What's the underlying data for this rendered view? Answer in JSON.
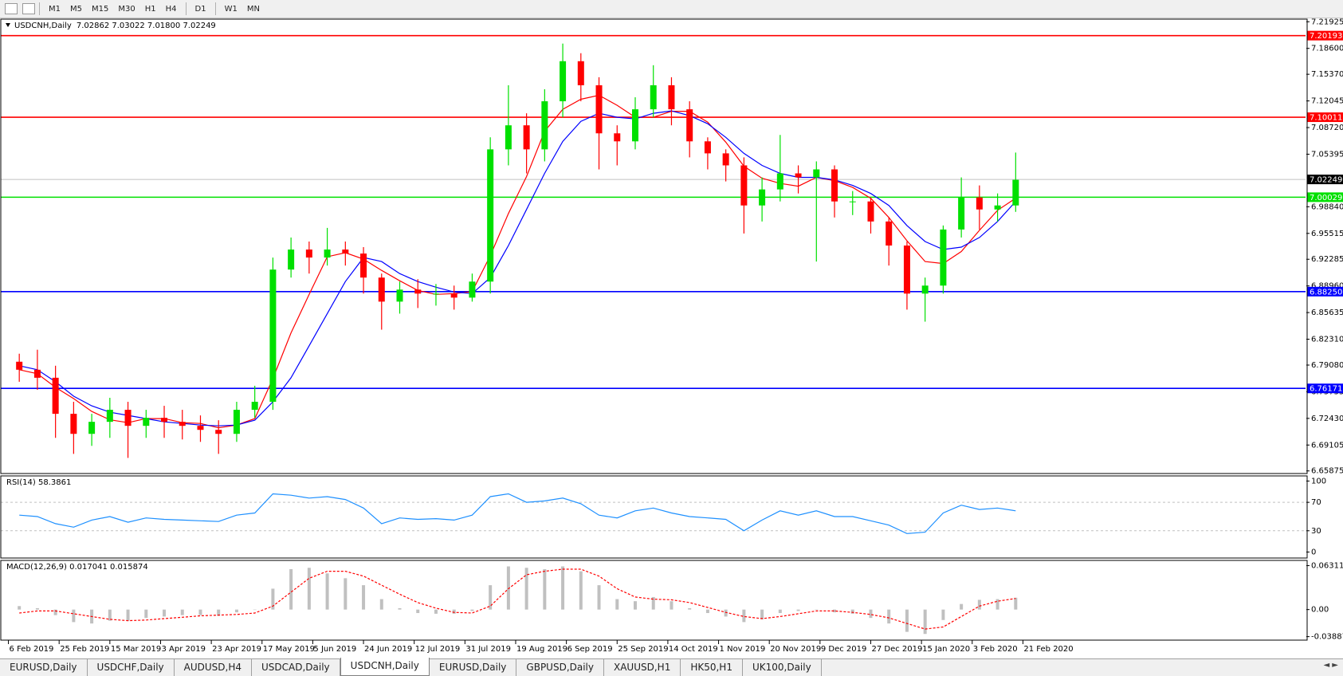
{
  "toolbar": {
    "timeframes": [
      "M1",
      "M5",
      "M15",
      "M30",
      "H1",
      "H4",
      "D1",
      "W1",
      "MN"
    ]
  },
  "tabs": {
    "items": [
      "EURUSD,Daily",
      "USDCHF,Daily",
      "AUDUSD,H4",
      "USDCAD,Daily",
      "USDCNH,Daily",
      "EURUSD,Daily",
      "GBPUSD,Daily",
      "XAUUSD,H1",
      "HK50,H1",
      "UK100,Daily"
    ],
    "active": 4
  },
  "chart_data": [
    {
      "type": "candlestick",
      "title": "USDCNH,Daily",
      "info": "7.02862 7.03022 7.01800 7.02249",
      "up_color": "#00e000",
      "down_color": "#ff0000",
      "xlim": [
        -1,
        358
      ],
      "xticks": [
        {
          "value": 0,
          "label": "6 Feb 2019"
        },
        {
          "value": 14,
          "label": "25 Feb 2019"
        },
        {
          "value": 28,
          "label": "15 Mar 2019"
        },
        {
          "value": 42,
          "label": "3 Apr 2019"
        },
        {
          "value": 56,
          "label": "23 Apr 2019"
        },
        {
          "value": 70,
          "label": "17 May 2019"
        },
        {
          "value": 84,
          "label": "5 Jun 2019"
        },
        {
          "value": 98,
          "label": "24 Jun 2019"
        },
        {
          "value": 112,
          "label": "12 Jul 2019"
        },
        {
          "value": 126,
          "label": "31 Jul 2019"
        },
        {
          "value": 140,
          "label": "19 Aug 2019"
        },
        {
          "value": 154,
          "label": "6 Sep 2019"
        },
        {
          "value": 168,
          "label": "25 Sep 2019"
        },
        {
          "value": 182,
          "label": "14 Oct 2019"
        },
        {
          "value": 196,
          "label": "1 Nov 2019"
        },
        {
          "value": 210,
          "label": "20 Nov 2019"
        },
        {
          "value": 224,
          "label": "9 Dec 2019"
        },
        {
          "value": 238,
          "label": "27 Dec 2019"
        },
        {
          "value": 252,
          "label": "15 Jan 2020"
        },
        {
          "value": 266,
          "label": "3 Feb 2020"
        },
        {
          "value": 280,
          "label": "21 Feb 2020"
        }
      ],
      "ylim": [
        6.6555,
        7.2225
      ],
      "yticks": [
        {
          "value": 7.21925,
          "label": "7.21925"
        },
        {
          "value": 7.186,
          "label": "7.18600"
        },
        {
          "value": 7.1537,
          "label": "7.15370"
        },
        {
          "value": 7.12045,
          "label": "7.12045"
        },
        {
          "value": 7.0872,
          "label": "7.08720"
        },
        {
          "value": 7.05395,
          "label": "7.05395"
        },
        {
          "value": 6.9884,
          "label": "6.98840"
        },
        {
          "value": 6.95515,
          "label": "6.95515"
        },
        {
          "value": 6.92285,
          "label": "6.92285"
        },
        {
          "value": 6.8896,
          "label": "6.88960"
        },
        {
          "value": 6.85635,
          "label": "6.85635"
        },
        {
          "value": 6.8231,
          "label": "6.82310"
        },
        {
          "value": 6.7908,
          "label": "6.79080"
        },
        {
          "value": 6.75755,
          "label": "6.75755"
        },
        {
          "value": 6.7243,
          "label": "6.72430"
        },
        {
          "value": 6.69105,
          "label": "6.69105"
        },
        {
          "value": 6.65875,
          "label": "6.65875"
        }
      ],
      "levels": [
        {
          "value": 7.20193,
          "label": "7.20193",
          "color": "#ff0000"
        },
        {
          "value": 7.10011,
          "label": "7.10011",
          "color": "#ff0000"
        },
        {
          "value": 7.00029,
          "label": "7.00029",
          "color": "#00e000"
        },
        {
          "value": 6.8825,
          "label": "6.88250",
          "color": "#0000ff"
        },
        {
          "value": 6.76171,
          "label": "6.76171",
          "color": "#0000ff"
        }
      ],
      "last": {
        "value": 7.02249,
        "label": "7.02249",
        "color": "#c0c0c0"
      },
      "x": [
        3,
        8,
        13,
        18,
        23,
        28,
        33,
        38,
        43,
        48,
        53,
        58,
        63,
        68,
        73,
        78,
        83,
        88,
        93,
        98,
        103,
        108,
        113,
        118,
        123,
        128,
        133,
        138,
        143,
        148,
        153,
        158,
        163,
        168,
        173,
        178,
        183,
        188,
        193,
        198,
        203,
        208,
        213,
        218,
        223,
        228,
        233,
        238,
        243,
        248,
        253,
        258,
        263,
        268,
        273,
        278
      ],
      "open": [
        6.795,
        6.785,
        6.775,
        6.73,
        6.705,
        6.72,
        6.735,
        6.715,
        6.725,
        6.72,
        6.715,
        6.71,
        6.705,
        6.735,
        6.745,
        6.91,
        6.935,
        6.925,
        6.935,
        6.93,
        6.9,
        6.87,
        6.885,
        6.88,
        6.88,
        6.875,
        6.895,
        7.06,
        7.09,
        7.06,
        7.12,
        7.17,
        7.14,
        7.08,
        7.07,
        7.11,
        7.14,
        7.11,
        7.07,
        7.055,
        7.04,
        6.99,
        7.01,
        7.03,
        7.025,
        7.035,
        6.995,
        6.995,
        6.97,
        6.94,
        6.88,
        6.89,
        6.96,
        7.0,
        6.985,
        6.99
      ],
      "high": [
        6.805,
        6.81,
        6.79,
        6.745,
        6.73,
        6.75,
        6.745,
        6.735,
        6.74,
        6.735,
        6.728,
        6.722,
        6.745,
        6.765,
        6.925,
        6.95,
        6.945,
        6.962,
        6.945,
        6.938,
        6.905,
        6.895,
        6.898,
        6.892,
        6.89,
        6.905,
        7.075,
        7.14,
        7.105,
        7.135,
        7.192,
        7.18,
        7.15,
        7.09,
        7.125,
        7.165,
        7.15,
        7.12,
        7.075,
        7.06,
        7.05,
        7.025,
        7.078,
        7.04,
        7.045,
        7.04,
        7.008,
        7.0,
        6.975,
        6.945,
        6.9,
        6.965,
        7.025,
        7.015,
        7.005,
        7.056
      ],
      "low": [
        6.77,
        6.76,
        6.7,
        6.68,
        6.69,
        6.7,
        6.675,
        6.7,
        6.7,
        6.698,
        6.695,
        6.68,
        6.695,
        6.725,
        6.735,
        6.9,
        6.905,
        6.915,
        6.915,
        6.88,
        6.835,
        6.855,
        6.862,
        6.865,
        6.86,
        6.87,
        6.88,
        7.04,
        7.03,
        7.045,
        7.1,
        7.12,
        7.035,
        7.04,
        7.06,
        7.1,
        7.09,
        7.05,
        7.035,
        7.02,
        6.955,
        6.97,
        6.995,
        7.005,
        6.92,
        6.975,
        6.978,
        6.955,
        6.915,
        6.86,
        6.845,
        6.88,
        6.95,
        6.96,
        6.97,
        6.982
      ],
      "close": [
        6.785,
        6.775,
        6.73,
        6.705,
        6.72,
        6.735,
        6.715,
        6.725,
        6.72,
        6.715,
        6.71,
        6.705,
        6.735,
        6.745,
        6.91,
        6.935,
        6.925,
        6.935,
        6.93,
        6.9,
        6.87,
        6.885,
        6.88,
        6.88,
        6.875,
        6.895,
        7.06,
        7.09,
        7.06,
        7.12,
        7.17,
        7.14,
        7.08,
        7.07,
        7.11,
        7.14,
        7.11,
        7.07,
        7.055,
        7.04,
        6.99,
        7.01,
        7.03,
        7.025,
        7.035,
        6.995,
        6.995,
        6.97,
        6.94,
        6.88,
        6.89,
        6.96,
        7.0,
        6.985,
        6.99,
        7.022
      ],
      "overlays": [
        {
          "color": "#ff0000",
          "values": [
            6.785,
            6.78,
            6.763,
            6.749,
            6.733,
            6.7225,
            6.719,
            6.724,
            6.724,
            6.719,
            6.718,
            6.7125,
            6.716,
            6.724,
            6.774,
            6.831,
            6.879,
            6.926,
            6.931,
            6.923,
            6.909,
            6.896,
            6.884,
            6.879,
            6.88,
            6.8825,
            6.9275,
            6.98,
            7.026,
            7.0825,
            7.11,
            7.1225,
            7.1275,
            7.115,
            7.1,
            7.1,
            7.1075,
            7.1075,
            7.094,
            7.069,
            7.039,
            7.024,
            7.0175,
            7.014,
            7.025,
            7.021,
            7.0125,
            6.999,
            6.975,
            6.946,
            6.92,
            6.9175,
            6.9325,
            6.959,
            6.984,
            6.999
          ]
        },
        {
          "color": "#0000ff",
          "values": [
            6.79,
            6.785,
            6.77,
            6.752,
            6.74,
            6.732,
            6.728,
            6.724,
            6.72,
            6.718,
            6.716,
            6.715,
            6.716,
            6.722,
            6.745,
            6.775,
            6.815,
            6.855,
            6.895,
            6.925,
            6.92,
            6.905,
            6.895,
            6.888,
            6.882,
            6.88,
            6.9,
            6.94,
            6.985,
            7.03,
            7.07,
            7.095,
            7.105,
            7.1,
            7.098,
            7.105,
            7.108,
            7.102,
            7.092,
            7.075,
            7.055,
            7.04,
            7.03,
            7.025,
            7.025,
            7.022,
            7.015,
            7.005,
            6.99,
            6.965,
            6.945,
            6.935,
            6.938,
            6.95,
            6.97,
            6.995
          ]
        }
      ]
    },
    {
      "type": "line",
      "title": "RSI(14) 58.3861",
      "color": "#1e90ff",
      "ylim": [
        -8.4,
        107.2
      ],
      "yticks": [
        0,
        30,
        70,
        100
      ],
      "guides": [
        30,
        70
      ],
      "values": [
        52,
        50,
        40,
        35,
        45,
        50,
        42,
        48,
        46,
        45,
        44,
        43,
        52,
        55,
        82,
        80,
        76,
        78,
        74,
        62,
        40,
        48,
        46,
        47,
        45,
        52,
        78,
        82,
        70,
        72,
        76,
        68,
        52,
        48,
        58,
        62,
        55,
        50,
        48,
        46,
        30,
        45,
        58,
        52,
        58,
        50,
        50,
        44,
        38,
        26,
        28,
        55,
        66,
        60,
        62,
        58
      ]
    },
    {
      "type": "macd",
      "title": "MACD(12,26,9) 0.017041 0.015874",
      "color": "#c0c0c0",
      "signal_color": "#ff0000",
      "ylim": [
        -0.0439,
        0.0706
      ],
      "yticks": [
        0.063113,
        {
          "value": 0,
          "label": "0.00"
        },
        -0.038872
      ],
      "values": [
        0.005,
        0.002,
        -0.008,
        -0.018,
        -0.02,
        -0.016,
        -0.016,
        -0.012,
        -0.01,
        -0.008,
        -0.008,
        -0.009,
        -0.004,
        0.0,
        0.03,
        0.058,
        0.06,
        0.052,
        0.045,
        0.035,
        0.015,
        0.002,
        -0.005,
        -0.006,
        -0.006,
        -0.002,
        0.035,
        0.062,
        0.06,
        0.058,
        0.062,
        0.055,
        0.035,
        0.015,
        0.012,
        0.018,
        0.012,
        0.002,
        -0.005,
        -0.01,
        -0.018,
        -0.014,
        -0.005,
        -0.002,
        0.0,
        -0.004,
        -0.006,
        -0.012,
        -0.02,
        -0.032,
        -0.035,
        -0.015,
        0.008,
        0.014,
        0.015,
        0.017
      ],
      "signal": [
        -0.005,
        -0.002,
        -0.002,
        -0.006,
        -0.01,
        -0.014,
        -0.016,
        -0.015,
        -0.013,
        -0.011,
        -0.009,
        -0.008,
        -0.007,
        -0.005,
        0.005,
        0.025,
        0.045,
        0.055,
        0.055,
        0.048,
        0.035,
        0.022,
        0.01,
        0.002,
        -0.004,
        -0.005,
        0.005,
        0.03,
        0.05,
        0.055,
        0.058,
        0.058,
        0.048,
        0.03,
        0.018,
        0.015,
        0.014,
        0.01,
        0.003,
        -0.004,
        -0.01,
        -0.013,
        -0.01,
        -0.006,
        -0.002,
        -0.002,
        -0.004,
        -0.007,
        -0.012,
        -0.02,
        -0.028,
        -0.025,
        -0.01,
        0.005,
        0.012,
        0.016
      ]
    }
  ]
}
